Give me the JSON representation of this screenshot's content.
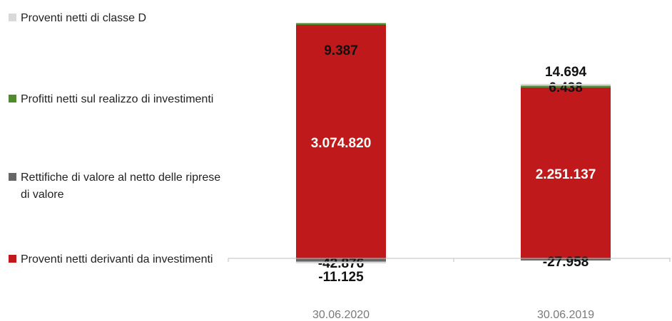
{
  "chart_data": {
    "type": "bar",
    "stacked": true,
    "categories": [
      "30.06.2020",
      "30.06.2019"
    ],
    "series": [
      {
        "name": "Proventi netti derivanti da investimenti",
        "color": "#c0191b",
        "values": [
          3074820,
          2251137
        ],
        "labels": [
          "3.074.820",
          "2.251.137"
        ]
      },
      {
        "name": "Rettifiche di valore al netto delle riprese di valore",
        "color": "#666666",
        "values": [
          -42876,
          -27958
        ],
        "labels": [
          "-42.876",
          "-27.958"
        ]
      },
      {
        "name": "Profitti netti sul realizzo di investimenti",
        "color": "#4f8a2c",
        "values": [
          9387,
          6438
        ],
        "labels": [
          "9.387",
          "6.438"
        ]
      },
      {
        "name": "Proventi netti di classe D",
        "color": "#d9d9d9",
        "values": [
          -11125,
          14694
        ],
        "labels": [
          "-11.125",
          "14.694"
        ]
      }
    ],
    "legend_position": "left",
    "grid": false
  }
}
